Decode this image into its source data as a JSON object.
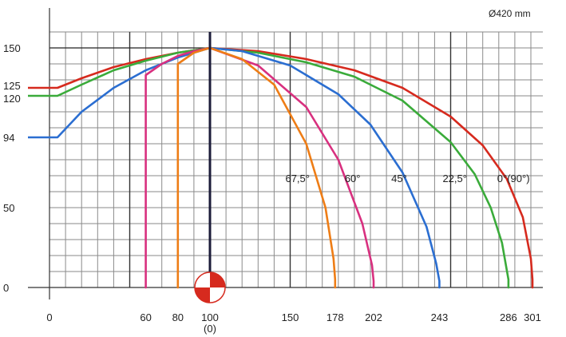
{
  "chart_data": {
    "type": "line",
    "title": "Ø420 mm",
    "xlabel": "",
    "ylabel": "",
    "xlim": [
      0,
      310
    ],
    "ylim": [
      0,
      160
    ],
    "grid": true,
    "x_ticks": [
      {
        "value": 0,
        "label": "0"
      },
      {
        "value": 60,
        "label": "60"
      },
      {
        "value": 80,
        "label": "80"
      },
      {
        "value": 100,
        "label": "100"
      },
      {
        "value": 150,
        "label": "150"
      },
      {
        "value": 178,
        "label": "178"
      },
      {
        "value": 202,
        "label": "202"
      },
      {
        "value": 243,
        "label": "243"
      },
      {
        "value": 286,
        "label": "286"
      },
      {
        "value": 301,
        "label": "301"
      }
    ],
    "x_sublabel": "(0)",
    "y_ticks": [
      {
        "value": 0,
        "label": "0"
      },
      {
        "value": 50,
        "label": "50"
      },
      {
        "value": 94,
        "label": "94"
      },
      {
        "value": 120,
        "label": "120"
      },
      {
        "value": 125,
        "label": "125"
      },
      {
        "value": 150,
        "label": "150"
      }
    ],
    "center_x": 100,
    "series": [
      {
        "name": "0°(90°)",
        "color": "#d62a1e",
        "x": [
          0,
          5,
          20,
          40,
          60,
          80,
          100,
          130,
          160,
          190,
          220,
          250,
          270,
          285,
          295,
          300,
          301,
          301
        ],
        "y": [
          125,
          125,
          131,
          138,
          143,
          147,
          150,
          148,
          143,
          136,
          125,
          107,
          89,
          68,
          44,
          18,
          5,
          0
        ]
      },
      {
        "name": "22,5°",
        "color": "#3aab3a",
        "x": [
          0,
          5,
          20,
          40,
          60,
          80,
          100,
          130,
          160,
          190,
          220,
          250,
          265,
          275,
          282,
          286,
          286
        ],
        "y": [
          120,
          120,
          127,
          136,
          142,
          147,
          150,
          147,
          141,
          132,
          117,
          91,
          71,
          50,
          28,
          5,
          0
        ]
      },
      {
        "name": "45°",
        "color": "#2b6ed1",
        "x": [
          0,
          5,
          20,
          40,
          60,
          80,
          100,
          120,
          150,
          180,
          200,
          220,
          235,
          241,
          243,
          243
        ],
        "y": [
          94,
          94,
          110,
          125,
          136,
          144,
          150,
          148,
          139,
          121,
          102,
          72,
          38,
          15,
          4,
          0
        ]
      },
      {
        "name": "60°",
        "color": "#d8307f",
        "x": [
          60,
          60,
          70,
          80,
          90,
          100,
          130,
          160,
          180,
          195,
          201,
          202,
          202
        ],
        "y": [
          0,
          133,
          140,
          145,
          148,
          150,
          139,
          113,
          80,
          40,
          14,
          4,
          0
        ]
      },
      {
        "name": "67,5°",
        "color": "#ee7d16",
        "x": [
          80,
          80,
          90,
          100,
          120,
          140,
          160,
          172,
          177,
          178,
          178
        ],
        "y": [
          0,
          140,
          147,
          150,
          143,
          127,
          90,
          50,
          18,
          5,
          0
        ]
      }
    ],
    "label_positions": [
      {
        "series": "67,5°",
        "x": 147,
        "y": 66
      },
      {
        "series": "60°",
        "x": 184,
        "y": 66
      },
      {
        "series": "45°",
        "x": 213,
        "y": 66
      },
      {
        "series": "22,5°",
        "x": 245,
        "y": 66
      },
      {
        "series": "0°(90°)",
        "x": 279,
        "y": 66
      }
    ]
  }
}
